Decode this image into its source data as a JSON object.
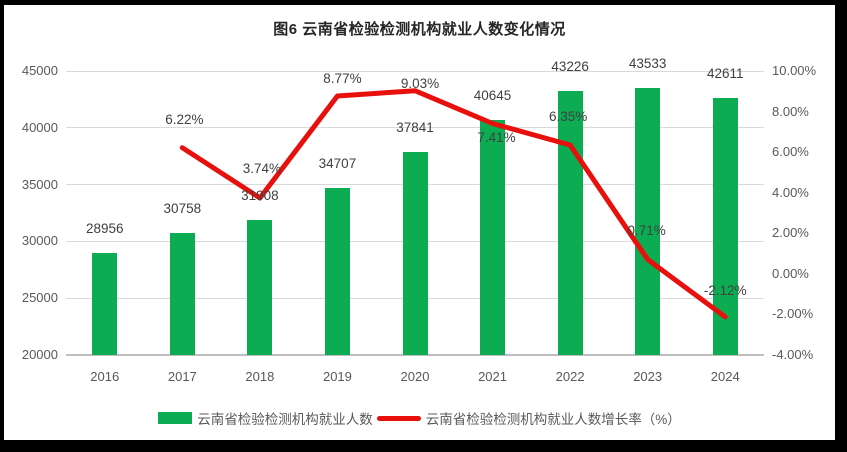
{
  "title": "图6 云南省检验检测机构就业人数变化情况",
  "colors": {
    "bar": "#0cad52",
    "line": "#e8100c",
    "grid": "#d9d9d9",
    "axis_line": "#bfbfbf",
    "data_label": "#404040",
    "tick_label": "#595959",
    "frame": "#000000"
  },
  "legend": {
    "items": [
      {
        "swatch": "bar-swatch",
        "label": "云南省检验检测机构就业人数"
      },
      {
        "swatch": "line-swatch",
        "label": "云南省检验检测机构就业人数增长率（%）"
      }
    ],
    "position": "bottom"
  },
  "chart_data": {
    "type": "bar",
    "subtype": "bar+line combo, dual axis",
    "title": "图6 云南省检验检测机构就业人数变化情况",
    "categories": [
      "2016",
      "2017",
      "2018",
      "2019",
      "2020",
      "2021",
      "2022",
      "2023",
      "2024"
    ],
    "series": [
      {
        "name": "云南省检验检测机构就业人数",
        "type": "bar",
        "axis": "left",
        "values": [
          28956,
          30758,
          31908,
          34707,
          37841,
          40645,
          43226,
          43533,
          42611
        ]
      },
      {
        "name": "云南省检验检测机构就业人数增长率（%）",
        "type": "line",
        "axis": "right",
        "values": [
          null,
          6.22,
          3.74,
          8.77,
          9.03,
          7.41,
          6.35,
          0.71,
          -2.12
        ]
      }
    ],
    "bar_labels": [
      "28956",
      "30758",
      "31908",
      "34707",
      "37841",
      "40645",
      "43226",
      "43533",
      "42611"
    ],
    "line_labels": [
      null,
      "6.22%",
      "3.74%",
      "8.77%",
      "9.03%",
      "7.41%",
      "6.35%",
      "0.71%",
      "-2.12%"
    ],
    "left_axis": {
      "min": 20000,
      "max": 45000,
      "step": 5000,
      "ticks": [
        "45000",
        "40000",
        "35000",
        "30000",
        "25000",
        "20000"
      ]
    },
    "right_axis": {
      "min": -4,
      "max": 10,
      "step": 2,
      "ticks": [
        "10.00%",
        "8.00%",
        "6.00%",
        "4.00%",
        "2.00%",
        "0.00%",
        "-2.00%",
        "-4.00%"
      ]
    },
    "grid": true,
    "legend_position": "bottom",
    "line_label_offsets": [
      null,
      [
        2,
        -28
      ],
      [
        2,
        -29
      ],
      [
        5,
        -17
      ],
      [
        5,
        -7
      ],
      [
        4,
        14
      ],
      [
        -2,
        -28
      ],
      [
        -1,
        -28
      ],
      [
        0,
        -26
      ]
    ]
  }
}
